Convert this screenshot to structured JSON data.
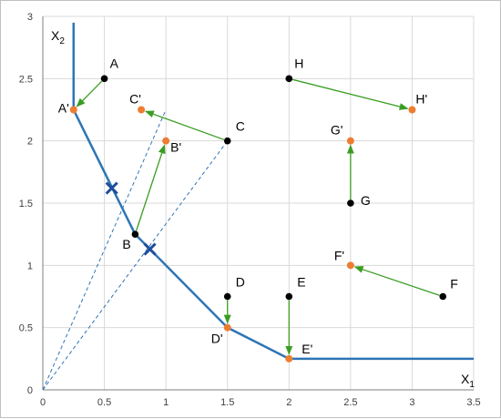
{
  "chart_data": {
    "type": "scatter",
    "title": "",
    "xlim": [
      0,
      3.5
    ],
    "ylim": [
      0,
      3
    ],
    "grid": true,
    "axis_labels": {
      "x": {
        "main": "X",
        "sub": "1"
      },
      "y": {
        "main": "X",
        "sub": "2"
      }
    },
    "x_ticks": [
      {
        "value": 0,
        "label": "0"
      },
      {
        "value": 0.5,
        "label": "0.5"
      },
      {
        "value": 1,
        "label": "1"
      },
      {
        "value": 1.5,
        "label": "1.5"
      },
      {
        "value": 2,
        "label": "2"
      },
      {
        "value": 2.5,
        "label": "2.5"
      },
      {
        "value": 3,
        "label": "3"
      },
      {
        "value": 3.5,
        "label": "3.5"
      }
    ],
    "y_ticks": [
      {
        "value": 0,
        "label": "0"
      },
      {
        "value": 0.5,
        "label": "0.5"
      },
      {
        "value": 1,
        "label": "1"
      },
      {
        "value": 1.5,
        "label": "1.5"
      },
      {
        "value": 2,
        "label": "2"
      },
      {
        "value": 2.5,
        "label": "2.5"
      },
      {
        "value": 3,
        "label": "3"
      }
    ],
    "frontier": {
      "color": "#2e75b6",
      "points": [
        [
          0.25,
          2.95
        ],
        [
          0.25,
          2.25
        ],
        [
          0.75,
          1.25
        ],
        [
          1.5,
          0.5
        ],
        [
          2,
          0.25
        ],
        [
          3.5,
          0.25
        ]
      ]
    },
    "rays": [
      {
        "from": [
          0,
          0
        ],
        "to": [
          1,
          2.25
        ]
      },
      {
        "from": [
          0,
          0
        ],
        "to": [
          1.5,
          2
        ]
      }
    ],
    "crosses": [
      {
        "x": 0.56,
        "y": 1.62
      },
      {
        "x": 0.87,
        "y": 1.13
      }
    ],
    "original_points": [
      {
        "label": "A",
        "x": 0.5,
        "y": 2.5
      },
      {
        "label": "B",
        "x": 0.75,
        "y": 1.25
      },
      {
        "label": "C",
        "x": 1.5,
        "y": 2.0
      },
      {
        "label": "D",
        "x": 1.5,
        "y": 0.75
      },
      {
        "label": "E",
        "x": 2.0,
        "y": 0.75
      },
      {
        "label": "F",
        "x": 3.25,
        "y": 0.75
      },
      {
        "label": "G",
        "x": 2.5,
        "y": 1.5
      },
      {
        "label": "H",
        "x": 2.0,
        "y": 2.5
      }
    ],
    "projected_points": [
      {
        "label": "A'",
        "x": 0.25,
        "y": 2.25
      },
      {
        "label": "B'",
        "x": 1.0,
        "y": 2.0
      },
      {
        "label": "C'",
        "x": 0.8,
        "y": 2.25
      },
      {
        "label": "D'",
        "x": 1.5,
        "y": 0.5
      },
      {
        "label": "E'",
        "x": 2.0,
        "y": 0.25
      },
      {
        "label": "F'",
        "x": 2.5,
        "y": 1.0
      },
      {
        "label": "G'",
        "x": 2.5,
        "y": 2.0
      },
      {
        "label": "H'",
        "x": 3.0,
        "y": 2.25
      }
    ],
    "arrows": [
      {
        "from": [
          0.5,
          2.5
        ],
        "to": [
          0.25,
          2.25
        ]
      },
      {
        "from": [
          0.75,
          1.25
        ],
        "to": [
          1.0,
          2.0
        ]
      },
      {
        "from": [
          1.5,
          2.0
        ],
        "to": [
          0.8,
          2.25
        ]
      },
      {
        "from": [
          1.5,
          0.75
        ],
        "to": [
          1.5,
          0.5
        ]
      },
      {
        "from": [
          2.0,
          0.75
        ],
        "to": [
          2.0,
          0.25
        ]
      },
      {
        "from": [
          3.25,
          0.75
        ],
        "to": [
          2.5,
          1.0
        ]
      },
      {
        "from": [
          2.5,
          1.5
        ],
        "to": [
          2.5,
          2.0
        ]
      },
      {
        "from": [
          2.0,
          2.5
        ],
        "to": [
          3.0,
          2.25
        ]
      }
    ],
    "colors": {
      "original": "#000000",
      "projected": "#ed7d31",
      "arrow": "#3a9d23",
      "frontier": "#2e75b6",
      "cross": "#1f4e9c",
      "grid": "#d9d9d9",
      "axis": "#7f7f7f"
    }
  }
}
